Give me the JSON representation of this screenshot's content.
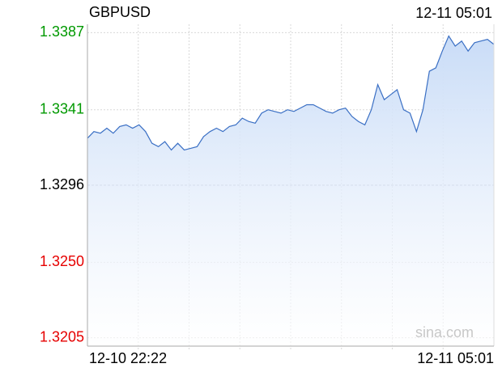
{
  "chart_data": {
    "type": "line",
    "title": "GBPUSD",
    "updated": "12-11 05:01",
    "watermark": "sina.com",
    "x_labels": [
      "12-10 22:22",
      "12-11 05:01"
    ],
    "ylim": [
      1.32,
      1.3392
    ],
    "yticks": [
      1.3387,
      1.3341,
      1.3296,
      {
        "value": 1.325,
        "label": "1.3250"
      },
      1.3205
    ],
    "ytick_colors": [
      "#009900",
      "#009900",
      "#000000",
      "#e60000",
      "#e60000"
    ],
    "grid": true,
    "color": "#3a6fc4",
    "values": [
      1.3324,
      1.3328,
      1.3327,
      1.333,
      1.3327,
      1.3331,
      1.3332,
      1.333,
      1.3332,
      1.3328,
      1.3321,
      1.3319,
      1.3322,
      1.3317,
      1.3321,
      1.3317,
      1.3318,
      1.3319,
      1.3325,
      1.3328,
      1.333,
      1.3328,
      1.3331,
      1.3332,
      1.3336,
      1.3334,
      1.3333,
      1.3339,
      1.3341,
      1.334,
      1.3339,
      1.3341,
      1.334,
      1.3342,
      1.3344,
      1.3344,
      1.3342,
      1.334,
      1.3339,
      1.3341,
      1.3342,
      1.3337,
      1.3334,
      1.3332,
      1.3341,
      1.3356,
      1.3347,
      1.335,
      1.3353,
      1.3341,
      1.3339,
      1.3328,
      1.3341,
      1.3364,
      1.3366,
      1.3376,
      1.3385,
      1.3379,
      1.3382,
      1.3376,
      1.3381,
      1.3382,
      1.3383,
      1.338
    ]
  }
}
